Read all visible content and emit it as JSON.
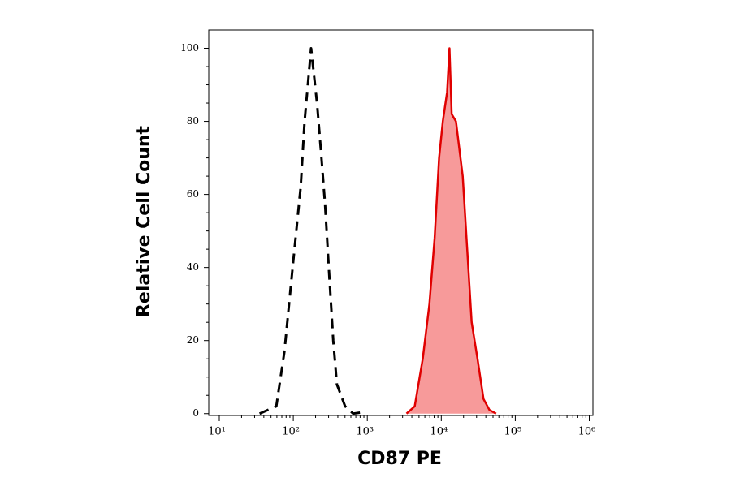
{
  "chart_data": {
    "type": "histogram-overlay",
    "x_label": "CD87 PE",
    "y_label": "Relative Cell Count",
    "xscale": "log",
    "xlim": [
      7.2,
      1120000
    ],
    "xticks": [
      {
        "value": 10,
        "label": "10¹"
      },
      {
        "value": 100,
        "label": "10²"
      },
      {
        "value": 1000,
        "label": "10³"
      },
      {
        "value": 10000,
        "label": "10⁴"
      },
      {
        "value": 100000,
        "label": "10⁵"
      },
      {
        "value": 1000000,
        "label": "10⁶"
      }
    ],
    "ylim": [
      -0.5,
      105
    ],
    "yticks": [
      0,
      20,
      40,
      60,
      80,
      100
    ],
    "series": [
      {
        "color": "#000000",
        "dashed": true,
        "x": [
          35,
          59,
          76,
          98,
          126,
          142,
          162,
          174,
          209,
          236,
          269,
          302,
          347,
          389,
          501,
          646,
          955
        ],
        "values": [
          0,
          2,
          17,
          40,
          62,
          80,
          93,
          100,
          85,
          72,
          57,
          40,
          20,
          8,
          2,
          0,
          0.5
        ]
      },
      {
        "color": "#e00000",
        "fill": "#f79a9a",
        "x": [
          3390,
          4370,
          5620,
          6920,
          8130,
          9330,
          10500,
          12000,
          12900,
          13800,
          15800,
          19500,
          22400,
          25700,
          30900,
          37200,
          44700,
          55000
        ],
        "values": [
          0,
          2,
          15,
          30,
          48,
          70,
          80,
          88,
          100,
          82,
          80,
          65,
          45,
          25,
          15,
          4,
          1,
          0
        ]
      }
    ]
  }
}
